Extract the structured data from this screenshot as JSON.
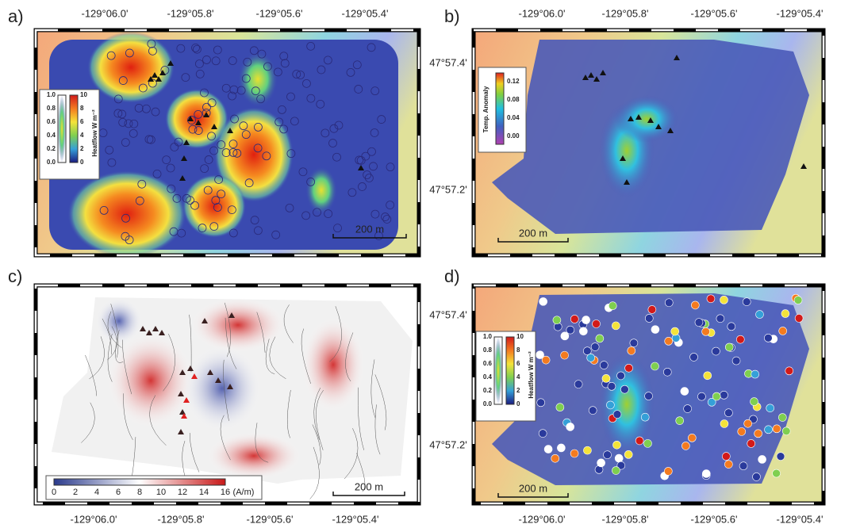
{
  "panels": [
    {
      "label": "a)",
      "top_axis": [
        "-129°06.0'",
        "-129°05.8'",
        "-129°05.6'",
        "-129°05.4'"
      ],
      "lat_axis": [
        "47°57.4'",
        "47°57.2'"
      ],
      "scale_bar": "200 m",
      "legend": {
        "title": "Heatflow W m⁻²",
        "left_ticks": [
          "1.0",
          "0.8",
          "0.6",
          "0.4",
          "0.2",
          "0.0"
        ],
        "right_ticks": [
          "10",
          "8",
          "6",
          "4",
          "2",
          "0"
        ]
      }
    },
    {
      "label": "b)",
      "top_axis": [
        "-129°06.0'",
        "-129°05.8'",
        "-129°05.6'",
        "-129°05.4'"
      ],
      "scale_bar": "200 m",
      "legend": {
        "title": "Temp. Anomaly",
        "ticks": [
          "0.12",
          "0.08",
          "0.04",
          "0.00"
        ]
      }
    },
    {
      "label": "c)",
      "bottom_axis": [
        "-129°06.0'",
        "-129°05.8'",
        "-129°05.6'",
        "-129°05.4'"
      ],
      "lat_axis": [
        "47°57.4'",
        "47°57.2'"
      ],
      "scale_bar": "200 m",
      "legend": {
        "ticks": [
          "0",
          "2",
          "4",
          "6",
          "8",
          "10",
          "12",
          "14",
          "16"
        ],
        "unit": "(A/m)"
      }
    },
    {
      "label": "d)",
      "bottom_axis": [
        "-129°06.0'",
        "-129°05.8'",
        "-129°05.6'",
        "-129°05.4'"
      ],
      "scale_bar": "200 m",
      "legend": {
        "title": "Heatflow W m⁻²",
        "left_ticks": [
          "1.0",
          "0.8",
          "0.6",
          "0.4",
          "0.2",
          "0.0"
        ],
        "right_ticks": [
          "10",
          "8",
          "6",
          "4",
          "2",
          "0"
        ]
      }
    }
  ]
}
